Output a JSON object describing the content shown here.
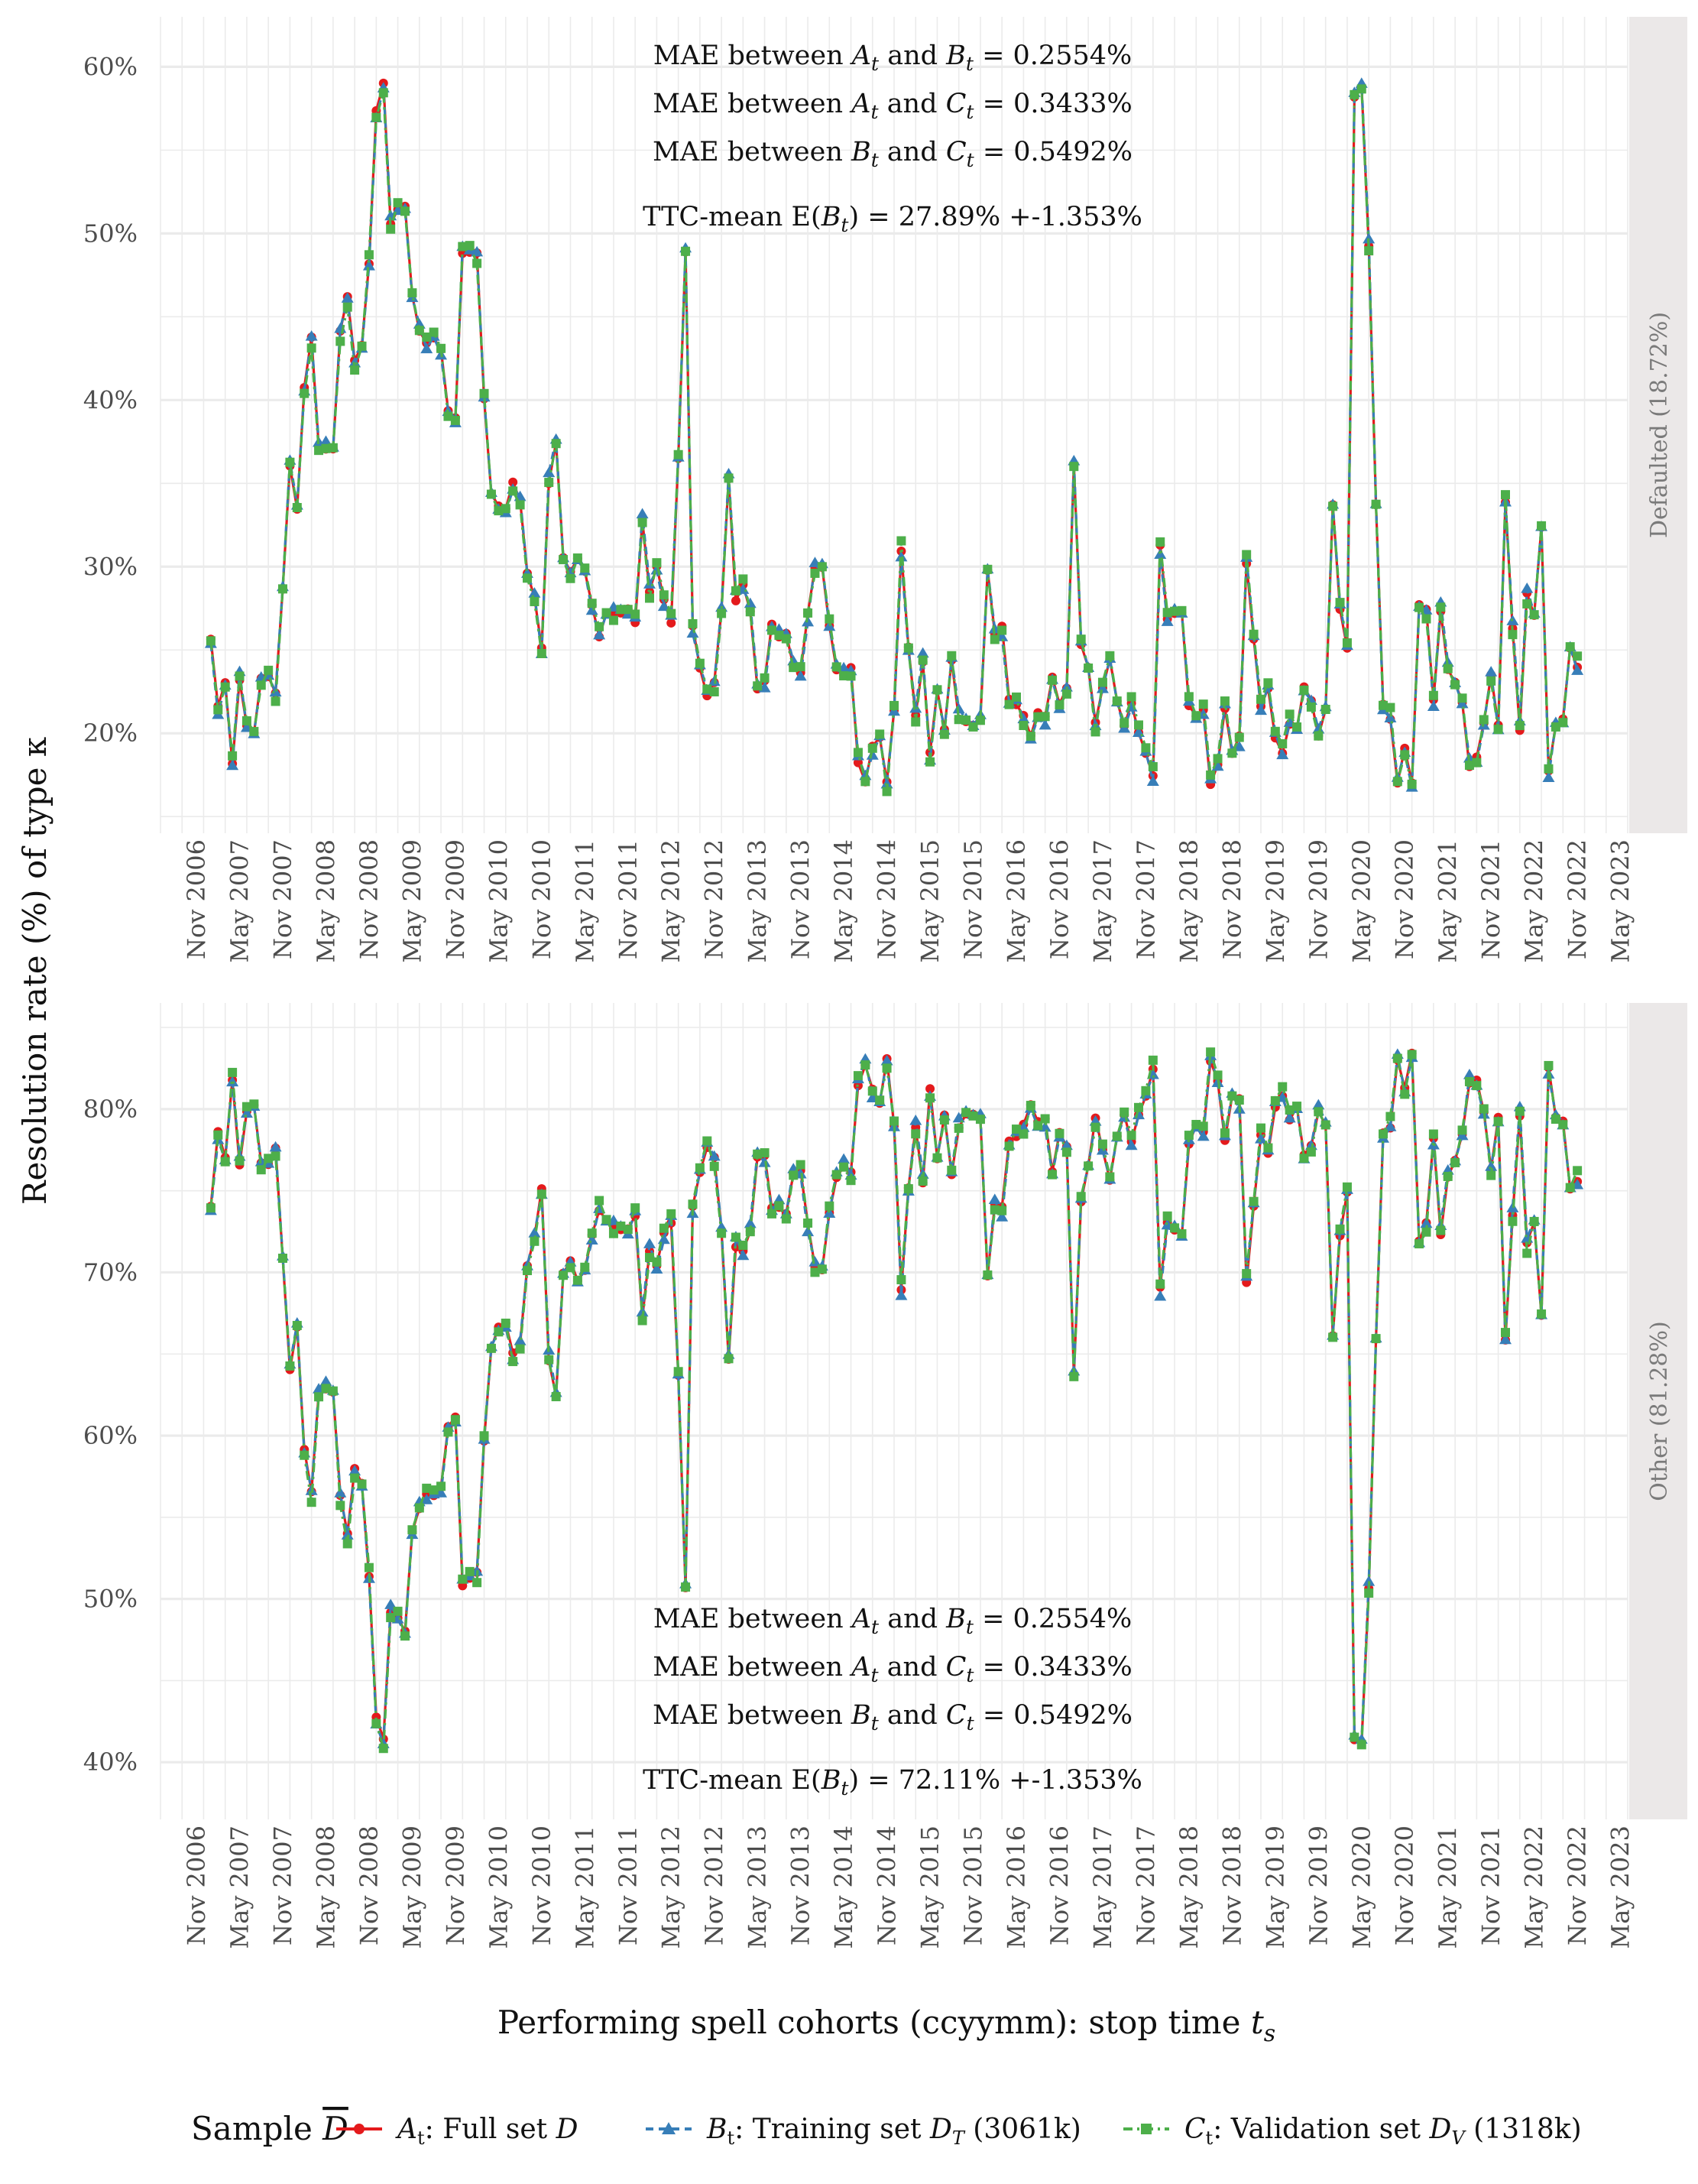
{
  "chart_data": {
    "type": "line",
    "ylabel": "Resolution rate (%) of type κ",
    "xlabel": "Performing spell cohorts (ccyymm): stop time t_s",
    "xlabel_main": "Performing spell cohorts (ccyymm): stop time ",
    "xlabel_var": "t",
    "xlabel_sub": "s",
    "x_range": [
      "2006-06",
      "2023-06"
    ],
    "x_ticks": [
      "Nov 2006",
      "May 2007",
      "Nov 2007",
      "May 2008",
      "Nov 2008",
      "May 2009",
      "Nov 2009",
      "May 2010",
      "Nov 2010",
      "May 2011",
      "Nov 2011",
      "May 2012",
      "Nov 2012",
      "May 2013",
      "Nov 2013",
      "May 2014",
      "Nov 2014",
      "May 2015",
      "Nov 2015",
      "May 2016",
      "Nov 2016",
      "May 2017",
      "Nov 2017",
      "May 2018",
      "Nov 2018",
      "May 2019",
      "Nov 2019",
      "May 2020",
      "Nov 2020",
      "May 2021",
      "Nov 2021",
      "May 2022",
      "Nov 2022",
      "May 2023"
    ],
    "grid": true,
    "legend": {
      "position": "bottom",
      "title": "Sample D",
      "entries": [
        {
          "key": "A",
          "var": "A",
          "sub": "t",
          "text": ": Full set ",
          "setvar": "D",
          "setsub": "",
          "tail": "",
          "color": "#e41a1c",
          "marker": "circle",
          "dash": "solid"
        },
        {
          "key": "B",
          "var": "B",
          "sub": "t",
          "text": ": Training set ",
          "setvar": "D",
          "setsub": "T",
          "tail": " (3061k)",
          "color": "#377eb8",
          "marker": "triangle",
          "dash": "dashed"
        },
        {
          "key": "C",
          "var": "C",
          "sub": "t",
          "text": ": Validation set ",
          "setvar": "D",
          "setsub": "V",
          "tail": " (1318k)",
          "color": "#4daf4a",
          "marker": "square",
          "dash": "dotdash"
        }
      ]
    },
    "panels": [
      {
        "strip": "Defaulted (18.72%)",
        "ylim": [
          14,
          63
        ],
        "y_ticks": [
          20,
          30,
          40,
          50,
          60
        ],
        "y_tick_labels": [
          "20%",
          "30%",
          "40%",
          "50%",
          "60%"
        ],
        "annotation_position": "top",
        "annotations": {
          "mae_ab": " = 0.2554%",
          "mae_ac": " = 0.3433%",
          "mae_bc": " = 0.5492%",
          "ttc": "TTC-mean E(B_t) = 27.89% +-1.353%",
          "ttc_value": " = 27.89% +-1.353%"
        },
        "anchors": [
          [
            "2007-01",
            25.8
          ],
          [
            "2007-02",
            21.5
          ],
          [
            "2007-03",
            23.0
          ],
          [
            "2007-04",
            18.2
          ],
          [
            "2007-05",
            23.3
          ],
          [
            "2007-06",
            20.3
          ],
          [
            "2007-07",
            19.9
          ],
          [
            "2007-08",
            23.3
          ],
          [
            "2007-09",
            23.4
          ],
          [
            "2007-10",
            22.4
          ],
          [
            "2007-11",
            28.9
          ],
          [
            "2007-12",
            36.0
          ],
          [
            "2008-01",
            33.4
          ],
          [
            "2008-02",
            40.8
          ],
          [
            "2008-03",
            43.6
          ],
          [
            "2008-04",
            37.3
          ],
          [
            "2008-05",
            37.1
          ],
          [
            "2008-06",
            37.2
          ],
          [
            "2008-07",
            43.9
          ],
          [
            "2008-08",
            46.1
          ],
          [
            "2008-09",
            42.2
          ],
          [
            "2008-10",
            43.1
          ],
          [
            "2008-11",
            48.4
          ],
          [
            "2008-12",
            57.3
          ],
          [
            "2009-01",
            58.8
          ],
          [
            "2009-02",
            50.7
          ],
          [
            "2009-03",
            51.3
          ],
          [
            "2009-04",
            51.8
          ],
          [
            "2009-05",
            46.1
          ],
          [
            "2009-06",
            44.3
          ],
          [
            "2009-07",
            43.5
          ],
          [
            "2009-08",
            43.7
          ],
          [
            "2009-09",
            43.1
          ],
          [
            "2009-10",
            39.4
          ],
          [
            "2009-11",
            38.9
          ],
          [
            "2009-12",
            49.0
          ],
          [
            "2010-01",
            48.8
          ],
          [
            "2010-02",
            48.6
          ],
          [
            "2010-03",
            40.2
          ],
          [
            "2010-04",
            34.5
          ],
          [
            "2010-05",
            33.5
          ],
          [
            "2010-06",
            33.3
          ],
          [
            "2010-07",
            35.0
          ],
          [
            "2010-08",
            34.2
          ],
          [
            "2010-09",
            29.6
          ],
          [
            "2010-10",
            28.0
          ],
          [
            "2010-11",
            25.0
          ],
          [
            "2010-12",
            35.2
          ],
          [
            "2011-01",
            37.5
          ],
          [
            "2011-02",
            30.3
          ],
          [
            "2011-03",
            29.5
          ],
          [
            "2011-04",
            30.5
          ],
          [
            "2011-05",
            29.8
          ],
          [
            "2011-06",
            27.7
          ],
          [
            "2011-07",
            26.0
          ],
          [
            "2011-08",
            27.0
          ],
          [
            "2011-09",
            27.2
          ],
          [
            "2011-10",
            27.3
          ],
          [
            "2011-11",
            27.4
          ],
          [
            "2011-12",
            26.6
          ],
          [
            "2012-01",
            32.8
          ],
          [
            "2012-02",
            28.6
          ],
          [
            "2012-03",
            29.8
          ],
          [
            "2012-04",
            27.8
          ],
          [
            "2012-05",
            26.8
          ],
          [
            "2012-06",
            36.4
          ],
          [
            "2012-07",
            49.1
          ],
          [
            "2012-08",
            26.2
          ],
          [
            "2012-09",
            23.9
          ],
          [
            "2012-10",
            22.3
          ],
          [
            "2012-11",
            23.0
          ],
          [
            "2012-12",
            27.4
          ],
          [
            "2013-01",
            35.3
          ],
          [
            "2013-02",
            28.2
          ],
          [
            "2013-03",
            28.8
          ],
          [
            "2013-04",
            27.4
          ],
          [
            "2013-05",
            22.8
          ],
          [
            "2013-06",
            23.0
          ],
          [
            "2013-07",
            26.3
          ],
          [
            "2013-08",
            25.9
          ],
          [
            "2013-09",
            26.2
          ],
          [
            "2013-10",
            24.0
          ],
          [
            "2013-11",
            23.7
          ],
          [
            "2013-12",
            27.1
          ],
          [
            "2014-01",
            29.8
          ],
          [
            "2014-02",
            29.9
          ],
          [
            "2014-03",
            26.4
          ],
          [
            "2014-04",
            24.0
          ],
          [
            "2014-05",
            23.5
          ],
          [
            "2014-06",
            23.9
          ],
          [
            "2014-07",
            18.4
          ],
          [
            "2014-08",
            17.2
          ],
          [
            "2014-09",
            19.0
          ],
          [
            "2014-10",
            19.7
          ],
          [
            "2014-11",
            17.0
          ],
          [
            "2014-12",
            21.2
          ],
          [
            "2015-01",
            31.0
          ],
          [
            "2015-02",
            25.0
          ],
          [
            "2015-03",
            21.1
          ],
          [
            "2015-04",
            24.4
          ],
          [
            "2015-05",
            18.8
          ],
          [
            "2015-06",
            22.8
          ],
          [
            "2015-07",
            20.3
          ],
          [
            "2015-08",
            24.2
          ],
          [
            "2015-09",
            21.0
          ],
          [
            "2015-10",
            20.5
          ],
          [
            "2015-11",
            20.4
          ],
          [
            "2015-12",
            20.7
          ],
          [
            "2016-01",
            30.0
          ],
          [
            "2016-02",
            25.9
          ],
          [
            "2016-03",
            26.2
          ],
          [
            "2016-04",
            22.0
          ],
          [
            "2016-05",
            21.7
          ],
          [
            "2016-06",
            21.0
          ],
          [
            "2016-07",
            19.8
          ],
          [
            "2016-08",
            21.0
          ],
          [
            "2016-09",
            20.8
          ],
          [
            "2016-10",
            23.6
          ],
          [
            "2016-11",
            21.6
          ],
          [
            "2016-12",
            22.5
          ],
          [
            "2017-01",
            36.2
          ],
          [
            "2017-02",
            25.5
          ],
          [
            "2017-03",
            23.7
          ],
          [
            "2017-04",
            20.6
          ],
          [
            "2017-05",
            22.6
          ],
          [
            "2017-06",
            24.4
          ],
          [
            "2017-07",
            21.8
          ],
          [
            "2017-08",
            20.4
          ],
          [
            "2017-09",
            21.9
          ],
          [
            "2017-10",
            20.2
          ],
          [
            "2017-11",
            19.0
          ],
          [
            "2017-12",
            17.5
          ],
          [
            "2018-01",
            31.1
          ],
          [
            "2018-02",
            26.9
          ],
          [
            "2018-03",
            27.3
          ],
          [
            "2018-04",
            27.5
          ],
          [
            "2018-05",
            21.9
          ],
          [
            "2018-06",
            21.0
          ],
          [
            "2018-07",
            21.4
          ],
          [
            "2018-08",
            17.0
          ],
          [
            "2018-09",
            18.2
          ],
          [
            "2018-10",
            21.7
          ],
          [
            "2018-11",
            19.0
          ],
          [
            "2018-12",
            19.6
          ],
          [
            "2019-01",
            30.4
          ],
          [
            "2019-02",
            25.8
          ],
          [
            "2019-03",
            21.6
          ],
          [
            "2019-04",
            22.7
          ],
          [
            "2019-05",
            19.8
          ],
          [
            "2019-06",
            19.0
          ],
          [
            "2019-07",
            20.6
          ],
          [
            "2019-08",
            20.1
          ],
          [
            "2019-09",
            22.8
          ],
          [
            "2019-10",
            22.1
          ],
          [
            "2019-11",
            20.0
          ],
          [
            "2019-12",
            21.2
          ],
          [
            "2020-01",
            33.8
          ],
          [
            "2020-02",
            27.6
          ],
          [
            "2020-03",
            25.1
          ],
          [
            "2020-04",
            58.4
          ],
          [
            "2020-05",
            58.8
          ],
          [
            "2020-06",
            49.3
          ],
          [
            "2020-07",
            33.9
          ],
          [
            "2020-08",
            21.6
          ],
          [
            "2020-09",
            21.0
          ],
          [
            "2020-10",
            17.0
          ],
          [
            "2020-11",
            18.9
          ],
          [
            "2020-12",
            16.8
          ],
          [
            "2021-01",
            27.9
          ],
          [
            "2021-02",
            27.2
          ],
          [
            "2021-03",
            21.9
          ],
          [
            "2021-04",
            27.5
          ],
          [
            "2021-05",
            24.0
          ],
          [
            "2021-06",
            23.1
          ],
          [
            "2021-07",
            21.7
          ],
          [
            "2021-08",
            18.2
          ],
          [
            "2021-09",
            18.4
          ],
          [
            "2021-10",
            20.4
          ],
          [
            "2021-11",
            23.6
          ],
          [
            "2021-12",
            20.5
          ],
          [
            "2022-01",
            34.0
          ],
          [
            "2022-02",
            26.4
          ],
          [
            "2022-03",
            20.3
          ],
          [
            "2022-04",
            28.3
          ],
          [
            "2022-05",
            27.0
          ],
          [
            "2022-06",
            32.5
          ],
          [
            "2022-07",
            17.6
          ],
          [
            "2022-08",
            20.5
          ],
          [
            "2022-09",
            20.8
          ],
          [
            "2022-10",
            25.0
          ],
          [
            "2022-11",
            24.2
          ]
        ]
      },
      {
        "strip": "Other (81.28%)",
        "ylim": [
          36.5,
          86.5
        ],
        "y_ticks": [
          40,
          50,
          60,
          70,
          80
        ],
        "y_tick_labels": [
          "40%",
          "50%",
          "60%",
          "70%",
          "80%"
        ],
        "annotation_position": "bottom",
        "annotations": {
          "mae_ab": " = 0.2554%",
          "mae_ac": " = 0.3433%",
          "mae_bc": " = 0.5492%",
          "ttc": "TTC-mean E(B_t) = 72.11% +-1.353%",
          "ttc_value": " = 72.11% +-1.353%"
        },
        "complement_of_panel": 0
      }
    ]
  }
}
